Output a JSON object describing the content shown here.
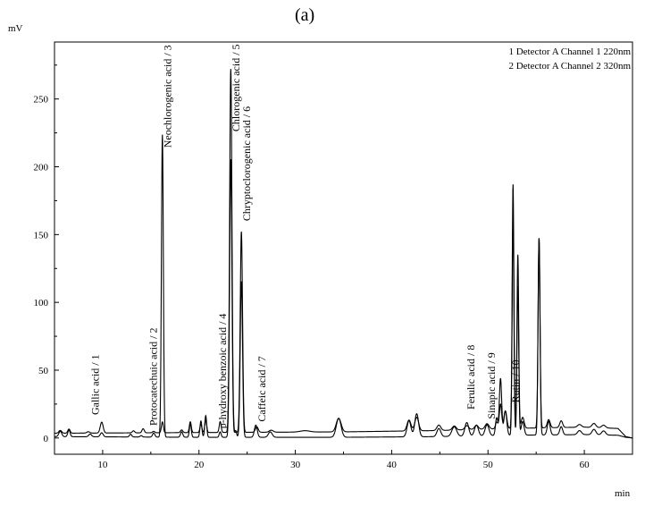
{
  "panel_label": "(a)",
  "chart_data": {
    "type": "line",
    "title": "",
    "xlabel": "min",
    "ylabel": "mV",
    "xlim": [
      5,
      65
    ],
    "ylim": [
      -12,
      292
    ],
    "x_ticks": [
      10,
      20,
      30,
      40,
      50,
      60
    ],
    "y_ticks": [
      0,
      50,
      100,
      150,
      200,
      250
    ],
    "grid": false,
    "legend_position": "top-right",
    "legend": [
      "1 Detector A Channel 1 220nm",
      "2 Detector A Channel 2 320nm"
    ],
    "series": [
      {
        "name": "1 Detector A Channel 1 220nm",
        "baseline": [
          [
            5,
            3.5
          ],
          [
            20,
            4
          ],
          [
            35,
            4.5
          ],
          [
            45,
            5.5
          ],
          [
            52,
            7
          ],
          [
            60,
            8
          ],
          [
            63.5,
            7
          ],
          [
            64.3,
            1
          ],
          [
            65,
            0
          ]
        ],
        "peaks": [
          {
            "t": 5.6,
            "h": 2,
            "w": 0.15
          },
          {
            "t": 6.5,
            "h": 3,
            "w": 0.12
          },
          {
            "t": 8.5,
            "h": 1,
            "w": 0.15
          },
          {
            "t": 9.9,
            "h": 8,
            "w": 0.15
          },
          {
            "t": 13.2,
            "h": 1.5,
            "w": 0.12
          },
          {
            "t": 14.2,
            "h": 3,
            "w": 0.12
          },
          {
            "t": 15.3,
            "h": 1,
            "w": 0.12
          },
          {
            "t": 16.2,
            "h": 8,
            "w": 0.1
          },
          {
            "t": 18.2,
            "h": 2,
            "w": 0.12
          },
          {
            "t": 19.1,
            "h": 8,
            "w": 0.1
          },
          {
            "t": 20.2,
            "h": 6,
            "w": 0.1
          },
          {
            "t": 20.7,
            "h": 9,
            "w": 0.1
          },
          {
            "t": 22.2,
            "h": 8,
            "w": 0.1
          },
          {
            "t": 23.3,
            "h": 268,
            "w": 0.12
          },
          {
            "t": 24.4,
            "h": 148,
            "w": 0.12
          },
          {
            "t": 26.0,
            "h": 4,
            "w": 0.15
          },
          {
            "t": 27.5,
            "h": 1.5,
            "w": 0.2
          },
          {
            "t": 31,
            "h": 1,
            "w": 0.5
          },
          {
            "t": 34.5,
            "h": 10,
            "w": 0.25
          },
          {
            "t": 41.8,
            "h": 8,
            "w": 0.2
          },
          {
            "t": 42.6,
            "h": 10,
            "w": 0.2
          },
          {
            "t": 44.9,
            "h": 4,
            "w": 0.2
          },
          {
            "t": 46.5,
            "h": 3,
            "w": 0.2
          },
          {
            "t": 47.8,
            "h": 3,
            "w": 0.2
          },
          {
            "t": 48.8,
            "h": 3,
            "w": 0.2
          },
          {
            "t": 49.9,
            "h": 4,
            "w": 0.2
          },
          {
            "t": 50.9,
            "h": 5,
            "w": 0.12
          },
          {
            "t": 51.3,
            "h": 18,
            "w": 0.12
          },
          {
            "t": 51.8,
            "h": 13,
            "w": 0.15
          },
          {
            "t": 52.6,
            "h": 180,
            "w": 0.09
          },
          {
            "t": 53.1,
            "h": 128,
            "w": 0.09
          },
          {
            "t": 53.6,
            "h": 8,
            "w": 0.15
          },
          {
            "t": 55.3,
            "h": 140,
            "w": 0.1
          },
          {
            "t": 56.3,
            "h": 6,
            "w": 0.15
          },
          {
            "t": 57.6,
            "h": 5,
            "w": 0.15
          },
          {
            "t": 59.5,
            "h": 2,
            "w": 0.2
          },
          {
            "t": 61.0,
            "h": 3,
            "w": 0.2
          },
          {
            "t": 62.0,
            "h": 2,
            "w": 0.2
          }
        ]
      },
      {
        "name": "2 Detector A Channel 2 320nm",
        "baseline": [
          [
            5,
            1
          ],
          [
            20,
            0.5
          ],
          [
            35,
            0.5
          ],
          [
            45,
            1
          ],
          [
            52,
            2
          ],
          [
            60,
            2.5
          ],
          [
            63.5,
            2
          ],
          [
            64.3,
            0.5
          ],
          [
            65,
            0
          ]
        ],
        "peaks": [
          {
            "t": 5.6,
            "h": 4,
            "w": 0.15
          },
          {
            "t": 6.5,
            "h": 5,
            "w": 0.12
          },
          {
            "t": 8.7,
            "h": 2,
            "w": 0.15
          },
          {
            "t": 9.9,
            "h": 3,
            "w": 0.15
          },
          {
            "t": 12.9,
            "h": 2,
            "w": 0.12
          },
          {
            "t": 14.0,
            "h": 1,
            "w": 0.12
          },
          {
            "t": 15.3,
            "h": 3,
            "w": 0.12
          },
          {
            "t": 16.2,
            "h": 223,
            "w": 0.1
          },
          {
            "t": 18.2,
            "h": 4,
            "w": 0.12
          },
          {
            "t": 19.1,
            "h": 10,
            "w": 0.1
          },
          {
            "t": 20.2,
            "h": 12,
            "w": 0.1
          },
          {
            "t": 20.7,
            "h": 16,
            "w": 0.1
          },
          {
            "t": 22.2,
            "h": 4,
            "w": 0.1
          },
          {
            "t": 23.3,
            "h": 205,
            "w": 0.12
          },
          {
            "t": 23.8,
            "h": 5,
            "w": 0.1
          },
          {
            "t": 24.4,
            "h": 115,
            "w": 0.12
          },
          {
            "t": 25.9,
            "h": 9,
            "w": 0.15
          },
          {
            "t": 27.4,
            "h": 4,
            "w": 0.2
          },
          {
            "t": 34.5,
            "h": 14,
            "w": 0.25
          },
          {
            "t": 41.8,
            "h": 12,
            "w": 0.2
          },
          {
            "t": 42.6,
            "h": 17,
            "w": 0.2
          },
          {
            "t": 44.9,
            "h": 6,
            "w": 0.2
          },
          {
            "t": 46.5,
            "h": 7,
            "w": 0.25
          },
          {
            "t": 47.8,
            "h": 10,
            "w": 0.2
          },
          {
            "t": 48.8,
            "h": 8,
            "w": 0.2
          },
          {
            "t": 49.9,
            "h": 8,
            "w": 0.2
          },
          {
            "t": 50.9,
            "h": 13,
            "w": 0.12
          },
          {
            "t": 51.3,
            "h": 42,
            "w": 0.12
          },
          {
            "t": 51.8,
            "h": 18,
            "w": 0.15
          },
          {
            "t": 52.6,
            "h": 160,
            "w": 0.09
          },
          {
            "t": 53.1,
            "h": 110,
            "w": 0.09
          },
          {
            "t": 53.6,
            "h": 10,
            "w": 0.15
          },
          {
            "t": 55.3,
            "h": 145,
            "w": 0.1
          },
          {
            "t": 56.3,
            "h": 10,
            "w": 0.15
          },
          {
            "t": 57.6,
            "h": 6,
            "w": 0.15
          },
          {
            "t": 59.5,
            "h": 3,
            "w": 0.2
          },
          {
            "t": 61.0,
            "h": 4,
            "w": 0.2
          },
          {
            "t": 62.0,
            "h": 3,
            "w": 0.2
          }
        ]
      }
    ],
    "annotations": [
      {
        "text": "Gallic acid / 1",
        "x": 9.6,
        "y": 17
      },
      {
        "text": "Protocatechuic acid / 2",
        "x": 15.6,
        "y": 9
      },
      {
        "text": "Neochlorogenic acid / 3",
        "x": 17.1,
        "y": 214
      },
      {
        "text": "p-hydroxy benzoic acid / 4",
        "x": 22.8,
        "y": 7
      },
      {
        "text": "Chlorogenic acid / 5",
        "x": 24.2,
        "y": 226
      },
      {
        "text": "Chryptoclorogenic acid / 6",
        "x": 25.3,
        "y": 160
      },
      {
        "text": "Caffeic acid / 7",
        "x": 26.9,
        "y": 12
      },
      {
        "text": "Ferulic acid / 8",
        "x": 48.6,
        "y": 21
      },
      {
        "text": "Sinapic acid / 9",
        "x": 50.7,
        "y": 14
      },
      {
        "text": "Rutin / 10",
        "x": 53.2,
        "y": 26
      }
    ]
  }
}
